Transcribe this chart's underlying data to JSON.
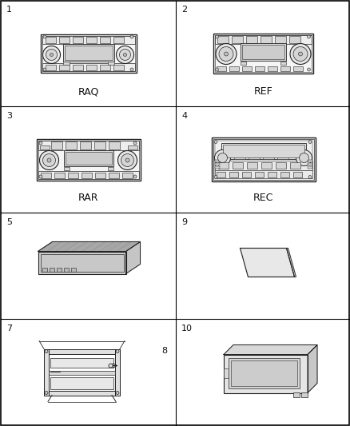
{
  "bg_color": "#ffffff",
  "line_color": "#222222",
  "fill_light": "#f0f0f0",
  "fill_mid": "#d8d8d8",
  "fill_dark": "#b0b0b0",
  "label_fontsize": 9,
  "number_fontsize": 8,
  "cells": [
    {
      "row": 0,
      "col": 0,
      "number": "1",
      "label": "RAQ",
      "type": "radio_raq"
    },
    {
      "row": 0,
      "col": 1,
      "number": "2",
      "label": "REF",
      "type": "radio_ref"
    },
    {
      "row": 1,
      "col": 0,
      "number": "3",
      "label": "RAR",
      "type": "radio_rar"
    },
    {
      "row": 1,
      "col": 1,
      "number": "4",
      "label": "REC",
      "type": "radio_rec"
    },
    {
      "row": 2,
      "col": 0,
      "number": "5",
      "label": "",
      "type": "cd_changer"
    },
    {
      "row": 2,
      "col": 1,
      "number": "9",
      "label": "",
      "type": "flat_disc"
    },
    {
      "row": 3,
      "col": 0,
      "number": "7",
      "label": "",
      "type": "bracket",
      "extra_number": "8"
    },
    {
      "row": 3,
      "col": 1,
      "number": "10",
      "label": "",
      "type": "module"
    }
  ]
}
